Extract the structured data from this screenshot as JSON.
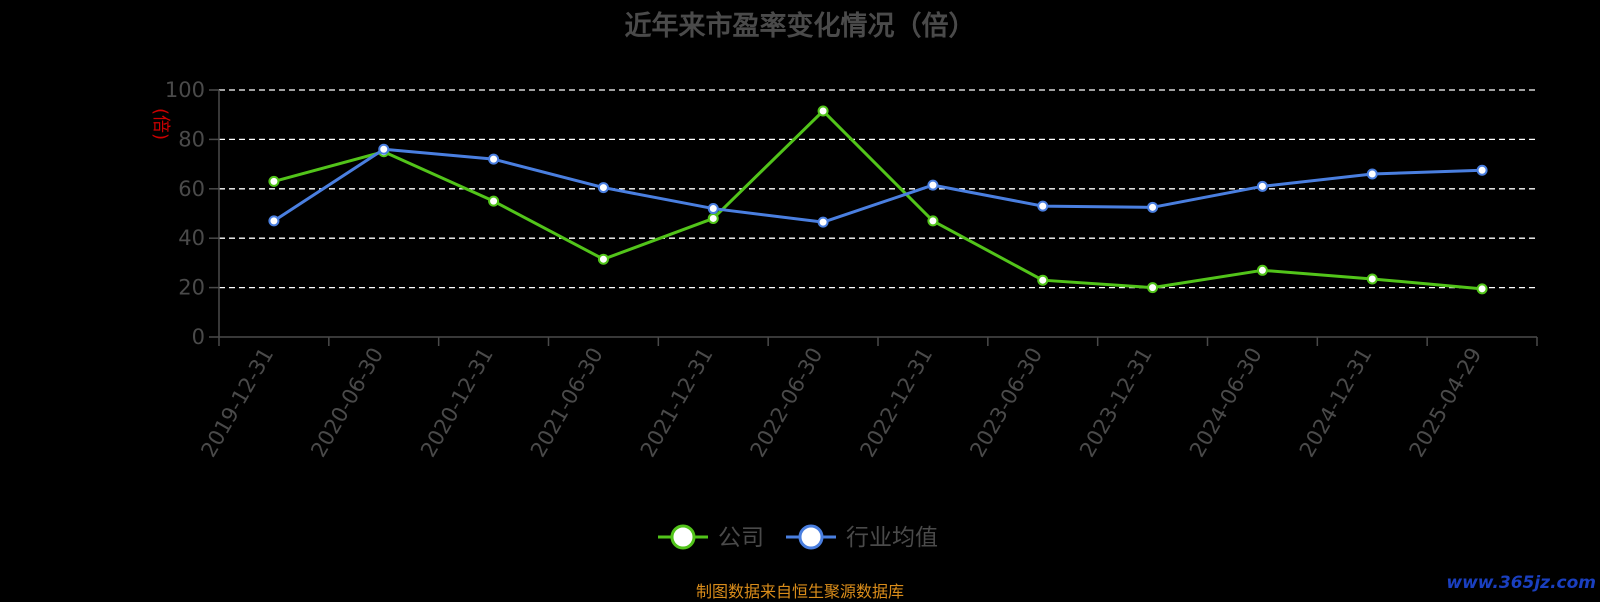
{
  "chart_data": {
    "type": "line",
    "title": "近年来市盈率变化情况（倍）",
    "ylabel": "(倍)",
    "xlabel": "",
    "ylim": [
      0,
      100
    ],
    "yticks": [
      0,
      20,
      40,
      60,
      80,
      100
    ],
    "grid": true,
    "legend_position": "bottom",
    "categories": [
      "2019-12-31",
      "2020-06-30",
      "2020-12-31",
      "2021-06-30",
      "2021-12-31",
      "2022-06-30",
      "2022-12-31",
      "2023-06-30",
      "2023-12-31",
      "2024-06-30",
      "2024-12-31",
      "2025-04-29"
    ],
    "series": [
      {
        "name": "公司",
        "color": "#52c41a",
        "values": [
          63,
          75,
          55,
          31.5,
          48,
          91.5,
          47,
          23,
          20,
          27,
          23.5,
          19.5
        ]
      },
      {
        "name": "行业均值",
        "color": "#4a7fe0",
        "values": [
          47,
          76,
          72,
          60.5,
          52,
          46.5,
          61.5,
          53,
          52.5,
          61,
          66,
          67.5
        ]
      }
    ]
  },
  "footer": {
    "source": "制图数据来自恒生聚源数据库",
    "watermark": "www.365jz.com"
  },
  "colors": {
    "background": "#000000",
    "axis_text": "#4a4a4a",
    "ylabel": "#cc0000",
    "grid": "#ffffff",
    "source": "#d98c1a",
    "watermark": "#1a3fbf"
  }
}
